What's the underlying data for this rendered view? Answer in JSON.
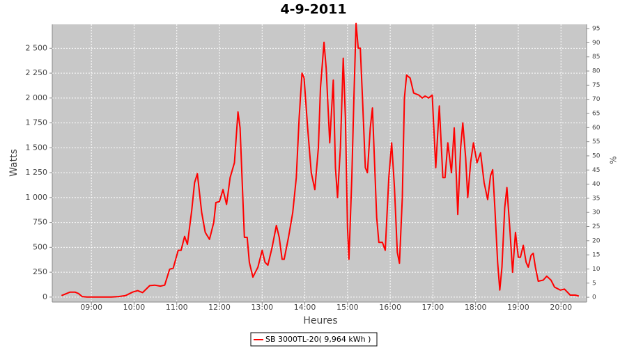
{
  "chart_data": {
    "type": "line",
    "title": "4-9-2011",
    "xlabel": "Heures",
    "ylabel": "Watts",
    "y2label": "%",
    "x": [
      "08:18",
      "08:25",
      "08:30",
      "08:37",
      "08:42",
      "08:47",
      "08:54",
      "09:28",
      "09:38",
      "09:48",
      "09:58",
      "10:05",
      "10:12",
      "10:17",
      "10:22",
      "10:29",
      "10:37",
      "10:43",
      "10:50",
      "10:55",
      "11:02",
      "11:06",
      "11:11",
      "11:15",
      "11:21",
      "11:25",
      "11:29",
      "11:35",
      "11:40",
      "11:46",
      "11:52",
      "11:55",
      "12:00",
      "12:05",
      "12:10",
      "12:15",
      "12:21",
      "12:26",
      "12:29",
      "12:35",
      "12:39",
      "12:42",
      "12:47",
      "12:54",
      "13:00",
      "13:04",
      "13:08",
      "13:14",
      "13:20",
      "13:24",
      "13:28",
      "13:31",
      "13:37",
      "13:43",
      "13:48",
      "13:52",
      "13:56",
      "13:59",
      "14:04",
      "14:09",
      "14:14",
      "14:19",
      "14:22",
      "14:27",
      "14:30",
      "14:35",
      "14:40",
      "14:43",
      "14:46",
      "14:50",
      "14:54",
      "14:57",
      "15:00",
      "15:02",
      "15:06",
      "15:09",
      "15:12",
      "15:15",
      "15:18",
      "15:21",
      "15:25",
      "15:28",
      "15:32",
      "15:35",
      "15:41",
      "15:44",
      "15:49",
      "15:53",
      "15:58",
      "16:02",
      "16:06",
      "16:10",
      "16:13",
      "16:17",
      "16:20",
      "16:23",
      "16:28",
      "16:33",
      "16:40",
      "16:45",
      "16:49",
      "16:54",
      "16:59",
      "17:04",
      "17:09",
      "17:14",
      "17:17",
      "17:21",
      "17:26",
      "17:30",
      "17:33",
      "17:35",
      "17:39",
      "17:42",
      "17:46",
      "17:49",
      "17:53",
      "17:57",
      "18:02",
      "18:07",
      "18:12",
      "18:17",
      "18:21",
      "18:24",
      "18:27",
      "18:31",
      "18:34",
      "18:37",
      "18:41",
      "18:44",
      "18:48",
      "18:52",
      "18:56",
      "19:00",
      "19:03",
      "19:07",
      "19:11",
      "19:14",
      "19:18",
      "19:21",
      "19:24",
      "19:28",
      "19:35",
      "19:40",
      "19:46",
      "19:51",
      "19:59",
      "20:05",
      "20:13",
      "20:20",
      "20:25"
    ],
    "series": [
      {
        "name": "SB 3000TL-20( 9,964 kWh )",
        "color": "#ff0000",
        "values": [
          15,
          35,
          50,
          50,
          35,
          5,
          0,
          0,
          5,
          15,
          50,
          65,
          45,
          80,
          115,
          120,
          110,
          120,
          280,
          290,
          470,
          470,
          610,
          530,
          870,
          1150,
          1240,
          850,
          650,
          580,
          750,
          950,
          960,
          1080,
          930,
          1200,
          1350,
          1860,
          1700,
          600,
          600,
          350,
          200,
          300,
          470,
          350,
          320,
          500,
          720,
          600,
          380,
          380,
          600,
          850,
          1200,
          1800,
          2250,
          2200,
          1700,
          1250,
          1080,
          1500,
          2100,
          2560,
          2300,
          1550,
          2180,
          1300,
          1000,
          1500,
          2400,
          1800,
          700,
          380,
          1200,
          2000,
          2750,
          2500,
          2500,
          2000,
          1300,
          1250,
          1700,
          1900,
          800,
          550,
          550,
          470,
          1200,
          1550,
          1100,
          450,
          340,
          1000,
          2000,
          2230,
          2200,
          2050,
          2030,
          2000,
          2020,
          2000,
          2030,
          1300,
          1920,
          1200,
          1200,
          1550,
          1250,
          1700,
          1200,
          830,
          1500,
          1750,
          1400,
          1000,
          1350,
          1550,
          1350,
          1450,
          1150,
          980,
          1220,
          1280,
          900,
          350,
          70,
          300,
          900,
          1100,
          700,
          250,
          650,
          400,
          400,
          520,
          350,
          300,
          420,
          440,
          300,
          160,
          170,
          210,
          170,
          100,
          70,
          80,
          20,
          20,
          10
        ]
      }
    ],
    "xlim": [
      "08:05",
      "20:36"
    ],
    "xticks": [
      "09:00",
      "10:00",
      "11:00",
      "12:00",
      "13:00",
      "14:00",
      "15:00",
      "16:00",
      "17:00",
      "18:00",
      "19:00",
      "20:00"
    ],
    "ylim": [
      -50,
      2740
    ],
    "yticks": [
      0,
      250,
      500,
      750,
      {
        "value": 1000,
        "label": "1 000"
      },
      {
        "value": 1250,
        "label": "1 250"
      },
      {
        "value": 1500,
        "label": "1 500"
      },
      {
        "value": 1750,
        "label": "1 750"
      },
      {
        "value": 2000,
        "label": "2 000"
      },
      {
        "value": 2250,
        "label": "2 250"
      },
      {
        "value": 2500,
        "label": "2 500"
      }
    ],
    "y2lim": [
      -1.7,
      96.5
    ],
    "y2ticks": [
      0,
      5,
      10,
      15,
      20,
      25,
      30,
      35,
      40,
      45,
      50,
      55,
      60,
      65,
      70,
      75,
      80,
      85,
      90,
      95
    ],
    "grid": true
  }
}
